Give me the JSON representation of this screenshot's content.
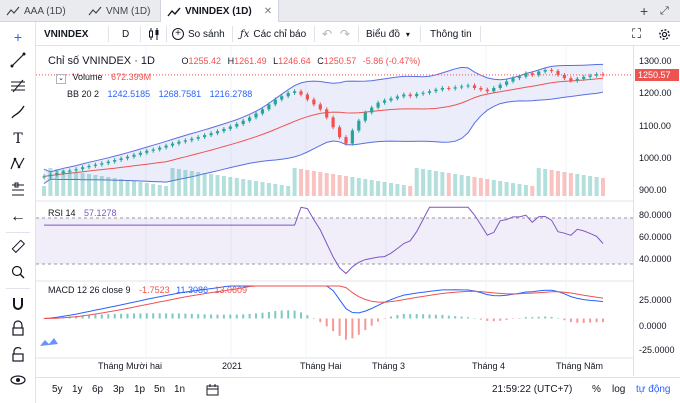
{
  "tabs": [
    {
      "label": "AAA (1D)"
    },
    {
      "label": "VNM (1D)"
    },
    {
      "label": "VNINDEX (1D)",
      "close": "✕"
    }
  ],
  "toolbar": {
    "symbol": "VNINDEX",
    "interval": "D",
    "compare": "So sánh",
    "indicators": "Các chỉ báo",
    "chart_type": "Biểu đồ",
    "info": "Thông tin"
  },
  "main_legend": {
    "title": "Chỉ số VNINDEX · 1D",
    "o_label": "O",
    "o": "1255.42",
    "h_label": "H",
    "h": "1261.49",
    "l_label": "L",
    "l": "1246.64",
    "c_label": "C",
    "c": "1250.57",
    "change": "-5.86 (-0.47%)",
    "volume_label": "Volume",
    "volume": "672.399M",
    "bb_label": "BB 20 2",
    "bb1": "1242.5185",
    "bb2": "1268.7581",
    "bb3": "1216.2788"
  },
  "rsi_legend": {
    "label": "RSI 14",
    "value": "57.1278"
  },
  "macd_legend": {
    "label": "MACD 12 26 close 9",
    "v1": "-1.7523",
    "v2": "11.3086",
    "v3": "13.0609"
  },
  "price_axis": {
    "ticks": [
      "1300.00",
      "1200.00",
      "1100.00",
      "1000.00",
      "900.00"
    ],
    "current": "1250.57",
    "rsi_ticks": [
      "80.0000",
      "60.0000",
      "40.0000"
    ],
    "macd_ticks": [
      "25.0000",
      "0.0000",
      "-25.0000"
    ]
  },
  "x_axis": [
    "Tháng Mười hai",
    "2021",
    "Tháng Hai",
    "Tháng 3",
    "Tháng 4",
    "Tháng Năm"
  ],
  "bottom": {
    "ranges": [
      "5y",
      "1y",
      "6p",
      "3p",
      "1p",
      "5n",
      "1n"
    ],
    "time": "21:59:22 (UTC+7)",
    "percent": "%",
    "log": "log",
    "auto": "tự động"
  },
  "colors": {
    "up": "#26a69a",
    "down": "#ef5350",
    "bb": "#5b6ee1",
    "rsi": "#7e57c2",
    "macd": "#2962ff",
    "signal": "#ef5350",
    "text_red": "#ef5350",
    "text_blue": "#2962ff"
  },
  "chart_data": {
    "type": "candlestick",
    "price_ylim": [
      880,
      1320
    ],
    "closes": [
      940,
      945,
      950,
      955,
      958,
      962,
      968,
      972,
      976,
      980,
      985,
      990,
      995,
      1000,
      1006,
      1012,
      1018,
      1022,
      1028,
      1034,
      1040,
      1046,
      1050,
      1055,
      1060,
      1066,
      1072,
      1078,
      1085,
      1092,
      1100,
      1110,
      1120,
      1132,
      1145,
      1160,
      1175,
      1185,
      1195,
      1200,
      1190,
      1175,
      1160,
      1145,
      1120,
      1090,
      1060,
      1040,
      1080,
      1110,
      1135,
      1150,
      1165,
      1172,
      1178,
      1184,
      1190,
      1185,
      1192,
      1195,
      1200,
      1205,
      1210,
      1208,
      1212,
      1215,
      1218,
      1210,
      1205,
      1200,
      1210,
      1220,
      1230,
      1240,
      1245,
      1255,
      1250,
      1260,
      1265,
      1262,
      1250,
      1240,
      1232,
      1238,
      1244,
      1248,
      1252,
      1250
    ],
    "rsi_ylim": [
      30,
      85
    ],
    "macd_ylim": [
      -30,
      30
    ]
  }
}
